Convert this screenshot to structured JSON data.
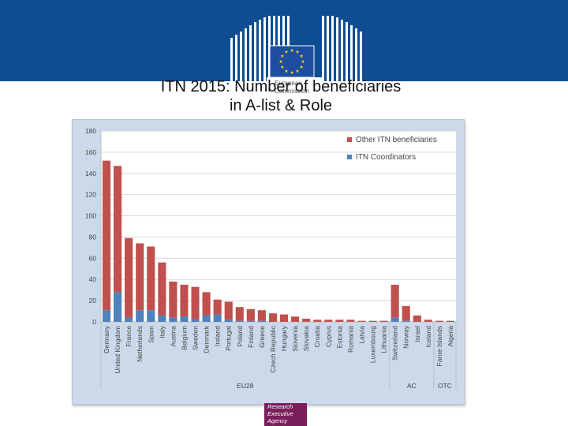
{
  "header": {
    "logo_text_line1": "European",
    "logo_text_line2": "Commission",
    "colors": {
      "banner": "#0f4d92",
      "flag": "#1d4ea0",
      "star": "#f7d117"
    }
  },
  "slide": {
    "title_line1": "ITN 2015: Number of beneficiaries",
    "title_line2": "in A-list & Role"
  },
  "footer": {
    "agency_line1": "Research",
    "agency_line2": "Executive",
    "agency_line3": "Agency"
  },
  "chart_data": {
    "type": "bar",
    "stacked": true,
    "title": "ITN 2015: Number of beneficiaries in A-list & Role",
    "xlabel": "",
    "ylabel": "",
    "ylim": [
      0,
      180
    ],
    "yticks": [
      0,
      20,
      40,
      60,
      80,
      100,
      120,
      140,
      160,
      180
    ],
    "grid": true,
    "legend_position": "top-right",
    "categories": [
      "Germany",
      "United Kingdom",
      "France",
      "Netherlands",
      "Spain",
      "Italy",
      "Austria",
      "Belgium",
      "Sweden",
      "Denmark",
      "Ireland",
      "Portugal",
      "Poland",
      "Finland",
      "Greece",
      "Czech Republic",
      "Hungary",
      "Slovenia",
      "Slovakia",
      "Croatia",
      "Cyprus",
      "Estonia",
      "Romania",
      "Latvia",
      "Luxembourg",
      "Lithuania",
      "Switzerland",
      "Norway",
      "Israel",
      "Iceland",
      "Faroe Islands",
      "Algeria"
    ],
    "series": [
      {
        "name": "ITN Coordinators",
        "color": "#4f81bd",
        "values": [
          11,
          28,
          4,
          11,
          11,
          6,
          4,
          5,
          3,
          6,
          7,
          2,
          1,
          1,
          1,
          0,
          0,
          0,
          0,
          0,
          0,
          0,
          0,
          0,
          0,
          0,
          4,
          1,
          0,
          0,
          0,
          0
        ]
      },
      {
        "name": "Other ITN beneficiaries",
        "color": "#c0504d",
        "values": [
          141,
          119,
          75,
          63,
          60,
          50,
          34,
          30,
          30,
          22,
          14,
          17,
          13,
          11,
          10,
          8,
          7,
          5,
          3,
          2,
          2,
          2,
          2,
          1,
          1,
          1,
          31,
          14,
          6,
          2,
          1,
          1
        ]
      }
    ],
    "groups": [
      {
        "name": "EU28",
        "from": 0,
        "to": 25
      },
      {
        "name": "AC",
        "from": 26,
        "to": 29
      },
      {
        "name": "OTC",
        "from": 30,
        "to": 31
      }
    ]
  }
}
